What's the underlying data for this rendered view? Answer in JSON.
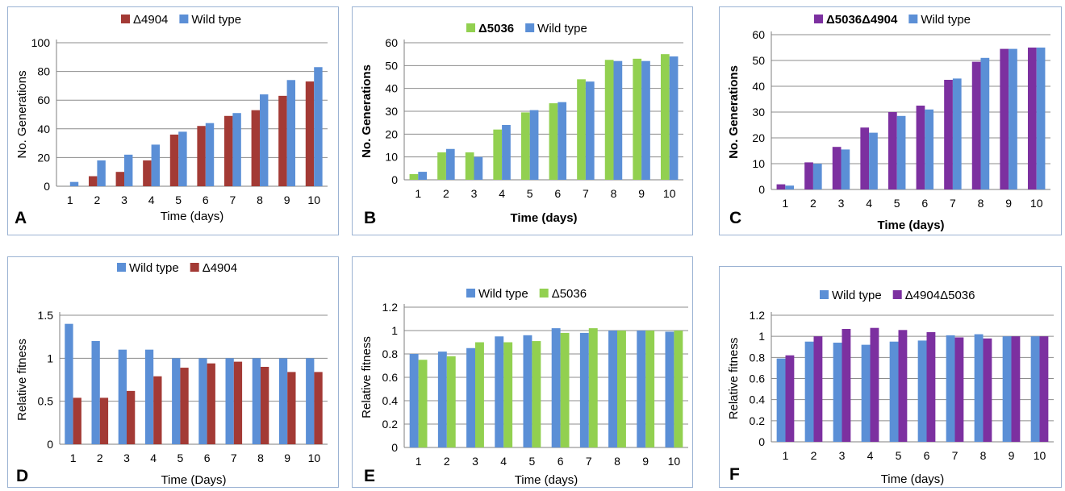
{
  "colors": {
    "red": "#a33a35",
    "blue": "#5b8fd6",
    "green": "#92d050",
    "purple": "#7c30a0"
  },
  "chart_data": [
    {
      "panel": "A",
      "type": "bar",
      "categories": [
        "1",
        "2",
        "3",
        "4",
        "5",
        "6",
        "7",
        "8",
        "9",
        "10"
      ],
      "series": [
        {
          "name": "Δ4904",
          "color": "#a33a35",
          "values": [
            0,
            7,
            10,
            18,
            36,
            42,
            49,
            53,
            63,
            73
          ]
        },
        {
          "name": "Wild type",
          "color": "#5b8fd6",
          "values": [
            3,
            18,
            22,
            29,
            38,
            44,
            51,
            64,
            74,
            83
          ]
        }
      ],
      "legend": [
        {
          "name": "Δ4904",
          "color": "#a33a35"
        },
        {
          "name": "Wild type",
          "color": "#5b8fd6"
        }
      ],
      "legend_bold": false,
      "xlabel": "Time (days)",
      "ylabel": "No. Generations",
      "label_bold": false,
      "yticks": [
        "0",
        "20",
        "40",
        "60",
        "80",
        "100"
      ],
      "ylim": [
        0,
        100
      ],
      "grid": true,
      "legend_position": "top"
    },
    {
      "panel": "B",
      "type": "bar",
      "categories": [
        "1",
        "2",
        "3",
        "4",
        "5",
        "6",
        "7",
        "8",
        "9",
        "10"
      ],
      "series": [
        {
          "name": "Δ5036",
          "color": "#92d050",
          "values": [
            2.5,
            12,
            12,
            22,
            29.5,
            33.5,
            44,
            52.5,
            53,
            55
          ]
        },
        {
          "name": "Wild type",
          "color": "#5b8fd6",
          "values": [
            3.5,
            13.5,
            10,
            24,
            30.5,
            34,
            43,
            52,
            52,
            54
          ]
        }
      ],
      "legend": [
        {
          "name": "Δ5036",
          "color": "#92d050"
        },
        {
          "name": "Wild type",
          "color": "#5b8fd6"
        }
      ],
      "legend_bold": [
        true,
        false
      ],
      "xlabel": "Time (days)",
      "ylabel": "No. Generations",
      "label_bold": true,
      "yticks": [
        "0",
        "10",
        "20",
        "30",
        "40",
        "50",
        "60"
      ],
      "ylim": [
        0,
        60
      ],
      "grid": true,
      "legend_position": "top"
    },
    {
      "panel": "C",
      "type": "bar",
      "categories": [
        "1",
        "2",
        "3",
        "4",
        "5",
        "6",
        "7",
        "8",
        "9",
        "10"
      ],
      "series": [
        {
          "name": "Δ5036Δ4904",
          "color": "#7c30a0",
          "values": [
            2,
            10.5,
            16.5,
            24,
            30,
            32.5,
            42.5,
            49.5,
            54.5,
            55
          ]
        },
        {
          "name": "Wild type",
          "color": "#5b8fd6",
          "values": [
            1.5,
            10,
            15.5,
            22,
            28.5,
            31,
            43,
            51,
            54.5,
            55
          ]
        }
      ],
      "legend": [
        {
          "name": "Δ5036Δ4904",
          "color": "#7c30a0"
        },
        {
          "name": "Wild type",
          "color": "#5b8fd6"
        }
      ],
      "legend_bold": [
        true,
        false
      ],
      "xlabel": "Time (days)",
      "ylabel": "No. Generations",
      "label_bold": true,
      "yticks": [
        "0",
        "10",
        "20",
        "30",
        "40",
        "50",
        "60"
      ],
      "ylim": [
        0,
        60
      ],
      "grid": true,
      "legend_position": "top"
    },
    {
      "panel": "D",
      "type": "bar",
      "categories": [
        "1",
        "2",
        "3",
        "4",
        "5",
        "6",
        "7",
        "8",
        "9",
        "10"
      ],
      "series": [
        {
          "name": "Wild type",
          "color": "#5b8fd6",
          "values": [
            1.4,
            1.2,
            1.1,
            1.1,
            1.0,
            1.0,
            1.0,
            1.0,
            1.0,
            1.0
          ]
        },
        {
          "name": "Δ4904",
          "color": "#a33a35",
          "values": [
            0.54,
            0.54,
            0.62,
            0.79,
            0.89,
            0.94,
            0.96,
            0.9,
            0.84,
            0.84
          ]
        }
      ],
      "legend": [
        {
          "name": "Wild type",
          "color": "#5b8fd6"
        },
        {
          "name": "Δ4904",
          "color": "#a33a35"
        }
      ],
      "legend_bold": false,
      "xlabel": "Time (Days)",
      "ylabel": "Relative fitness",
      "label_bold": false,
      "yticks": [
        "0",
        "0.5",
        "1",
        "1.5"
      ],
      "ylim": [
        0,
        1.5
      ],
      "grid": true,
      "legend_position": "top"
    },
    {
      "panel": "E",
      "type": "bar",
      "categories": [
        "1",
        "2",
        "3",
        "4",
        "5",
        "6",
        "7",
        "8",
        "9",
        "10"
      ],
      "series": [
        {
          "name": "Wild type",
          "color": "#5b8fd6",
          "values": [
            0.8,
            0.82,
            0.85,
            0.95,
            0.96,
            1.02,
            0.98,
            1.0,
            1.0,
            0.99
          ]
        },
        {
          "name": "Δ5036",
          "color": "#92d050",
          "values": [
            0.75,
            0.78,
            0.9,
            0.9,
            0.91,
            0.98,
            1.02,
            1.0,
            1.0,
            1.0
          ]
        }
      ],
      "legend": [
        {
          "name": "Wild type",
          "color": "#5b8fd6"
        },
        {
          "name": "Δ5036",
          "color": "#92d050"
        }
      ],
      "legend_bold": false,
      "xlabel": "Time (days)",
      "ylabel": "Relative fitness",
      "label_bold": false,
      "yticks": [
        "0",
        "0.2",
        "0.4",
        "0.6",
        "0.8",
        "1",
        "1.2"
      ],
      "ylim": [
        0,
        1.2
      ],
      "grid": true,
      "legend_position": "top"
    },
    {
      "panel": "F",
      "type": "bar",
      "categories": [
        "1",
        "2",
        "3",
        "4",
        "5",
        "6",
        "7",
        "8",
        "9",
        "10"
      ],
      "series": [
        {
          "name": "Wild type",
          "color": "#5b8fd6",
          "values": [
            0.79,
            0.95,
            0.94,
            0.92,
            0.95,
            0.96,
            1.01,
            1.02,
            1.0,
            1.0
          ]
        },
        {
          "name": "Δ4904Δ5036",
          "color": "#7c30a0",
          "values": [
            0.82,
            1.0,
            1.07,
            1.08,
            1.06,
            1.04,
            0.99,
            0.98,
            1.0,
            1.0
          ]
        }
      ],
      "legend": [
        {
          "name": "Wild type",
          "color": "#5b8fd6"
        },
        {
          "name": "Δ4904Δ5036",
          "color": "#7c30a0"
        }
      ],
      "legend_bold": false,
      "xlabel": "Time (days)",
      "ylabel": "Relative fitness",
      "label_bold": false,
      "yticks": [
        "0",
        "0.2",
        "0.4",
        "0.6",
        "0.8",
        "1",
        "1.2"
      ],
      "ylim": [
        0,
        1.2
      ],
      "grid": true,
      "legend_position": "top"
    }
  ]
}
